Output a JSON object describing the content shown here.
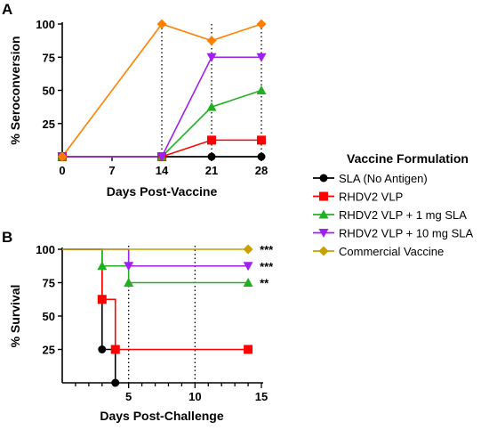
{
  "colors": {
    "sla": "#000000",
    "rhdv2_vlp": "#ff0000",
    "vlp_1mg": "#22b022",
    "vlp_10mg": "#a020f0",
    "commercial": "#c8a000",
    "panel_a_commercial_line": "#ff8000",
    "panel_a_commercial_marker": "#ff8000"
  },
  "panels": {
    "a": {
      "letter": "A"
    },
    "b": {
      "letter": "B"
    }
  },
  "legend": {
    "title": "Vaccine  Formulation",
    "items": [
      {
        "label": "SLA (No Antigen)",
        "marker": "circle",
        "color_key": "sla"
      },
      {
        "label": "RHDV2 VLP",
        "marker": "square",
        "color_key": "rhdv2_vlp"
      },
      {
        "label": "RHDV2 VLP + 1 mg SLA",
        "marker": "triangle-up",
        "color_key": "vlp_1mg"
      },
      {
        "label": "RHDV2 VLP + 10 mg SLA",
        "marker": "triangle-down",
        "color_key": "vlp_10mg"
      },
      {
        "label": "Commercial Vaccine",
        "marker": "diamond",
        "color_key": "commercial"
      }
    ]
  },
  "chart_data": [
    {
      "type": "line",
      "panel": "A",
      "xlabel": "Days Post-Vaccine",
      "ylabel": "% Seroconversion",
      "x_ticks": [
        0,
        7,
        14,
        21,
        28
      ],
      "y_ticks": [
        25,
        50,
        75,
        100
      ],
      "xlim": [
        0,
        28
      ],
      "ylim": [
        0,
        100
      ],
      "vertical_reference_lines": [
        14,
        21,
        28
      ],
      "series": [
        {
          "name": "SLA (No Antigen)",
          "color_key": "sla",
          "marker": "circle",
          "x": [
            0,
            14,
            21,
            28
          ],
          "y": [
            0,
            0,
            0,
            0
          ]
        },
        {
          "name": "RHDV2 VLP",
          "color_key": "rhdv2_vlp",
          "marker": "square",
          "x": [
            0,
            14,
            21,
            28
          ],
          "y": [
            0,
            0,
            12.5,
            12.5
          ]
        },
        {
          "name": "RHDV2 VLP + 1 mg SLA",
          "color_key": "vlp_1mg",
          "marker": "triangle-up",
          "x": [
            0,
            14,
            21,
            28
          ],
          "y": [
            0,
            0,
            37.5,
            50
          ]
        },
        {
          "name": "RHDV2 VLP + 10 mg SLA",
          "color_key": "vlp_10mg",
          "marker": "triangle-down",
          "x": [
            0,
            14,
            21,
            28
          ],
          "y": [
            0,
            0,
            75,
            75
          ]
        },
        {
          "name": "Commercial Vaccine",
          "color_key": "panel_a_commercial_line",
          "marker": "diamond",
          "x": [
            0,
            14,
            21,
            28
          ],
          "y": [
            0,
            100,
            87.5,
            100
          ]
        }
      ]
    },
    {
      "type": "line",
      "panel": "B",
      "xlabel": "Days Post-Challenge",
      "ylabel": "% Survival",
      "x_ticks": [
        5,
        10,
        15
      ],
      "y_ticks": [
        25,
        50,
        75,
        100
      ],
      "xlim": [
        0,
        15
      ],
      "ylim": [
        0,
        100
      ],
      "vertical_reference_lines": [
        5,
        10
      ],
      "series": [
        {
          "name": "SLA (No Antigen)",
          "color_key": "sla",
          "marker": "circle",
          "step": true,
          "x": [
            0,
            3,
            4
          ],
          "y": [
            100,
            25,
            0
          ]
        },
        {
          "name": "RHDV2 VLP",
          "color_key": "rhdv2_vlp",
          "marker": "square",
          "step": true,
          "x": [
            0,
            3,
            4,
            14
          ],
          "y": [
            100,
            62.5,
            25,
            25
          ]
        },
        {
          "name": "RHDV2 VLP + 1 mg SLA",
          "color_key": "vlp_1mg",
          "marker": "triangle-up",
          "step": true,
          "x": [
            0,
            3,
            5,
            14
          ],
          "y": [
            100,
            87.5,
            75,
            75
          ],
          "significance": "**"
        },
        {
          "name": "RHDV2 VLP + 10 mg SLA",
          "color_key": "vlp_10mg",
          "marker": "triangle-down",
          "step": true,
          "x": [
            0,
            5,
            14
          ],
          "y": [
            100,
            87.5,
            87.5
          ],
          "significance": "***"
        },
        {
          "name": "Commercial Vaccine",
          "color_key": "commercial",
          "marker": "diamond",
          "step": true,
          "x": [
            0,
            14
          ],
          "y": [
            100,
            100
          ],
          "significance": "***"
        }
      ]
    }
  ]
}
